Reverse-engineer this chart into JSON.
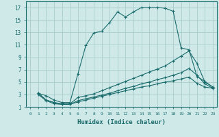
{
  "bg_color": "#cfe9e9",
  "grid_color": "#a8cccc",
  "line_color": "#1a6b6b",
  "xlabel": "Humidex (Indice chaleur)",
  "xlim": [
    -0.5,
    23.5
  ],
  "ylim": [
    1,
    18
  ],
  "xticks": [
    0,
    1,
    2,
    3,
    4,
    5,
    6,
    7,
    8,
    9,
    10,
    11,
    12,
    13,
    14,
    15,
    16,
    17,
    18,
    19,
    20,
    21,
    22,
    23
  ],
  "yticks": [
    1,
    3,
    5,
    7,
    9,
    11,
    13,
    15,
    17
  ],
  "series": [
    {
      "x": [
        1,
        2,
        3,
        4,
        5,
        6,
        7,
        8,
        9,
        10,
        11,
        12,
        13,
        14,
        15,
        16,
        17,
        18,
        19,
        20,
        21,
        22,
        23
      ],
      "y": [
        3.2,
        2.8,
        2.1,
        1.7,
        1.7,
        6.3,
        10.9,
        12.9,
        13.2,
        14.6,
        16.3,
        15.5,
        16.3,
        17.0,
        17.0,
        17.0,
        16.9,
        16.4,
        10.5,
        10.2,
        5.9,
        5.1,
        4.2
      ]
    },
    {
      "x": [
        1,
        2,
        3,
        4,
        5,
        6,
        7,
        8,
        9,
        10,
        11,
        12,
        13,
        14,
        15,
        16,
        17,
        18,
        19,
        20,
        21,
        22,
        23
      ],
      "y": [
        3.2,
        2.1,
        1.7,
        1.5,
        1.5,
        2.5,
        2.8,
        3.1,
        3.6,
        4.1,
        4.6,
        5.1,
        5.6,
        6.1,
        6.6,
        7.1,
        7.6,
        8.4,
        9.2,
        10.0,
        8.0,
        5.0,
        4.2
      ]
    },
    {
      "x": [
        1,
        2,
        3,
        4,
        5,
        6,
        7,
        8,
        9,
        10,
        11,
        12,
        13,
        14,
        15,
        16,
        17,
        18,
        19,
        20,
        21,
        22,
        23
      ],
      "y": [
        3.0,
        2.0,
        1.5,
        1.4,
        1.4,
        2.0,
        2.3,
        2.6,
        2.9,
        3.2,
        3.6,
        4.0,
        4.3,
        4.7,
        5.0,
        5.4,
        5.7,
        6.1,
        6.5,
        7.2,
        6.1,
        4.7,
        4.0
      ]
    },
    {
      "x": [
        1,
        2,
        3,
        4,
        5,
        6,
        7,
        8,
        9,
        10,
        11,
        12,
        13,
        14,
        15,
        16,
        17,
        18,
        19,
        20,
        21,
        22,
        23
      ],
      "y": [
        3.2,
        2.1,
        1.7,
        1.4,
        1.4,
        1.8,
        2.1,
        2.4,
        2.7,
        3.0,
        3.3,
        3.6,
        3.9,
        4.2,
        4.4,
        4.7,
        5.0,
        5.2,
        5.5,
        5.8,
        4.8,
        4.2,
        4.0
      ]
    }
  ]
}
